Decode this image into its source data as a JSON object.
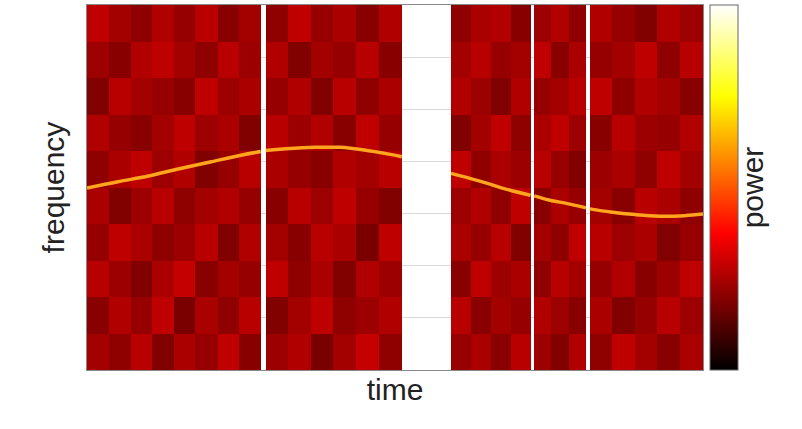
{
  "chart_data": {
    "type": "heatmap",
    "x_label": "time",
    "y_label": "frequency",
    "colorbar_title": "power",
    "xlim": [
      0,
      100
    ],
    "ylim": [
      0,
      7
    ],
    "yticks": [
      0,
      1,
      2,
      3,
      4,
      5,
      6,
      7
    ],
    "grid": true,
    "tick_labels": false,
    "zlim": [
      0,
      1
    ],
    "cells": {
      "x_edges": [
        0,
        3.5,
        7.1,
        10.6,
        14.1,
        17.6,
        21.2,
        24.7,
        28.2,
        29.0,
        32.7,
        36.4,
        40.0,
        43.7,
        47.4,
        51.1,
        59.1,
        62.3,
        65.6,
        68.8,
        72.0,
        72.6,
        75.4,
        78.2,
        81.0,
        81.6,
        85.3,
        89.0,
        92.6,
        96.3,
        100
      ],
      "y_edges": [
        0,
        0.7,
        1.4,
        2.1,
        2.8,
        3.5,
        4.2,
        4.9,
        5.6,
        6.3,
        7.0
      ],
      "values": [
        [
          0.24,
          0.21,
          0.27,
          0.19,
          0.25,
          0.22,
          0.28,
          0.2,
          null,
          0.23,
          0.26,
          0.18,
          0.24,
          0.29,
          0.21,
          null,
          0.22,
          0.25,
          0.2,
          0.27,
          null,
          0.23,
          0.19,
          0.26,
          null,
          0.21,
          0.28,
          0.24,
          0.2,
          0.25
        ],
        [
          0.2,
          0.26,
          0.22,
          0.28,
          0.18,
          0.25,
          0.21,
          0.27,
          null,
          0.19,
          0.24,
          0.28,
          0.21,
          0.23,
          0.26,
          null,
          0.27,
          0.2,
          0.24,
          0.22,
          null,
          0.26,
          0.23,
          0.2,
          null,
          0.25,
          0.19,
          0.22,
          0.27,
          0.23
        ],
        [
          0.27,
          0.23,
          0.19,
          0.25,
          0.29,
          0.2,
          0.24,
          0.22,
          null,
          0.28,
          0.21,
          0.25,
          0.19,
          0.26,
          0.23,
          null,
          0.2,
          0.28,
          0.23,
          0.25,
          null,
          0.21,
          0.27,
          0.24,
          null,
          0.22,
          0.26,
          0.2,
          0.23,
          0.28
        ],
        [
          0.22,
          0.28,
          0.25,
          0.21,
          0.23,
          0.27,
          0.19,
          0.26,
          null,
          0.24,
          0.2,
          0.27,
          0.25,
          0.18,
          0.28,
          null,
          0.25,
          0.22,
          0.27,
          0.19,
          null,
          0.24,
          0.21,
          0.28,
          null,
          0.27,
          0.23,
          0.25,
          0.19,
          0.22
        ],
        [
          0.25,
          0.19,
          0.23,
          0.27,
          0.21,
          0.24,
          0.26,
          0.22,
          null,
          0.2,
          0.27,
          0.23,
          0.28,
          0.22,
          0.19,
          null,
          0.23,
          0.26,
          0.21,
          0.28,
          null,
          0.2,
          0.25,
          0.22,
          null,
          0.24,
          0.2,
          0.27,
          0.25,
          0.21
        ],
        [
          0.21,
          0.25,
          0.28,
          0.23,
          0.26,
          0.19,
          0.22,
          0.27,
          null,
          0.25,
          0.22,
          0.2,
          0.26,
          0.24,
          0.27,
          null,
          0.28,
          0.21,
          0.25,
          0.23,
          null,
          0.27,
          0.22,
          0.19,
          null,
          0.23,
          0.25,
          0.21,
          0.28,
          0.24
        ],
        [
          0.26,
          0.22,
          0.2,
          0.24,
          0.28,
          0.23,
          0.25,
          0.19,
          null,
          0.27,
          0.23,
          0.26,
          0.2,
          0.28,
          0.22,
          null,
          0.19,
          0.24,
          0.28,
          0.21,
          null,
          0.25,
          0.28,
          0.23,
          null,
          0.2,
          0.27,
          0.23,
          0.22,
          0.26
        ],
        [
          0.19,
          0.27,
          0.24,
          0.22,
          0.2,
          0.28,
          0.23,
          0.25,
          null,
          0.22,
          0.26,
          0.19,
          0.27,
          0.21,
          0.25,
          null,
          0.26,
          0.23,
          0.19,
          0.26,
          null,
          0.22,
          0.24,
          0.27,
          null,
          0.28,
          0.21,
          0.26,
          0.24,
          0.2
        ],
        [
          0.23,
          0.2,
          0.26,
          0.28,
          0.24,
          0.21,
          0.27,
          0.23,
          null,
          0.26,
          0.19,
          0.24,
          0.22,
          0.27,
          0.2,
          null,
          0.24,
          0.27,
          0.22,
          0.24,
          null,
          0.28,
          0.2,
          0.25,
          null,
          0.22,
          0.24,
          0.28,
          0.21,
          0.27
        ],
        [
          0.28,
          0.24,
          0.21,
          0.26,
          0.22,
          0.27,
          0.2,
          0.24,
          null,
          0.21,
          0.28,
          0.22,
          0.25,
          0.2,
          0.26,
          null,
          0.21,
          0.25,
          0.26,
          0.2,
          null,
          0.23,
          0.26,
          0.21,
          null,
          0.26,
          0.22,
          0.19,
          0.26,
          0.23
        ]
      ]
    },
    "series": [
      {
        "type": "line",
        "color": "#ffa51e",
        "x": [
          0,
          5,
          10,
          15,
          20,
          25,
          28.2,
          28.6,
          29.0,
          33,
          37,
          41,
          45,
          49,
          51.1,
          55,
          59.1,
          62,
          65,
          68,
          72.0,
          72.3,
          72.6,
          75,
          78,
          81.0,
          81.3,
          81.6,
          85,
          89,
          93,
          97,
          100
        ],
        "values": [
          3.49,
          3.61,
          3.72,
          3.86,
          3.99,
          4.12,
          4.19,
          null,
          4.21,
          4.25,
          4.27,
          4.27,
          4.22,
          4.14,
          4.09,
          null,
          3.77,
          3.68,
          3.58,
          3.47,
          3.35,
          null,
          3.34,
          3.26,
          3.19,
          3.11,
          null,
          3.09,
          3.03,
          2.98,
          2.95,
          2.96,
          2.99
        ]
      }
    ]
  }
}
